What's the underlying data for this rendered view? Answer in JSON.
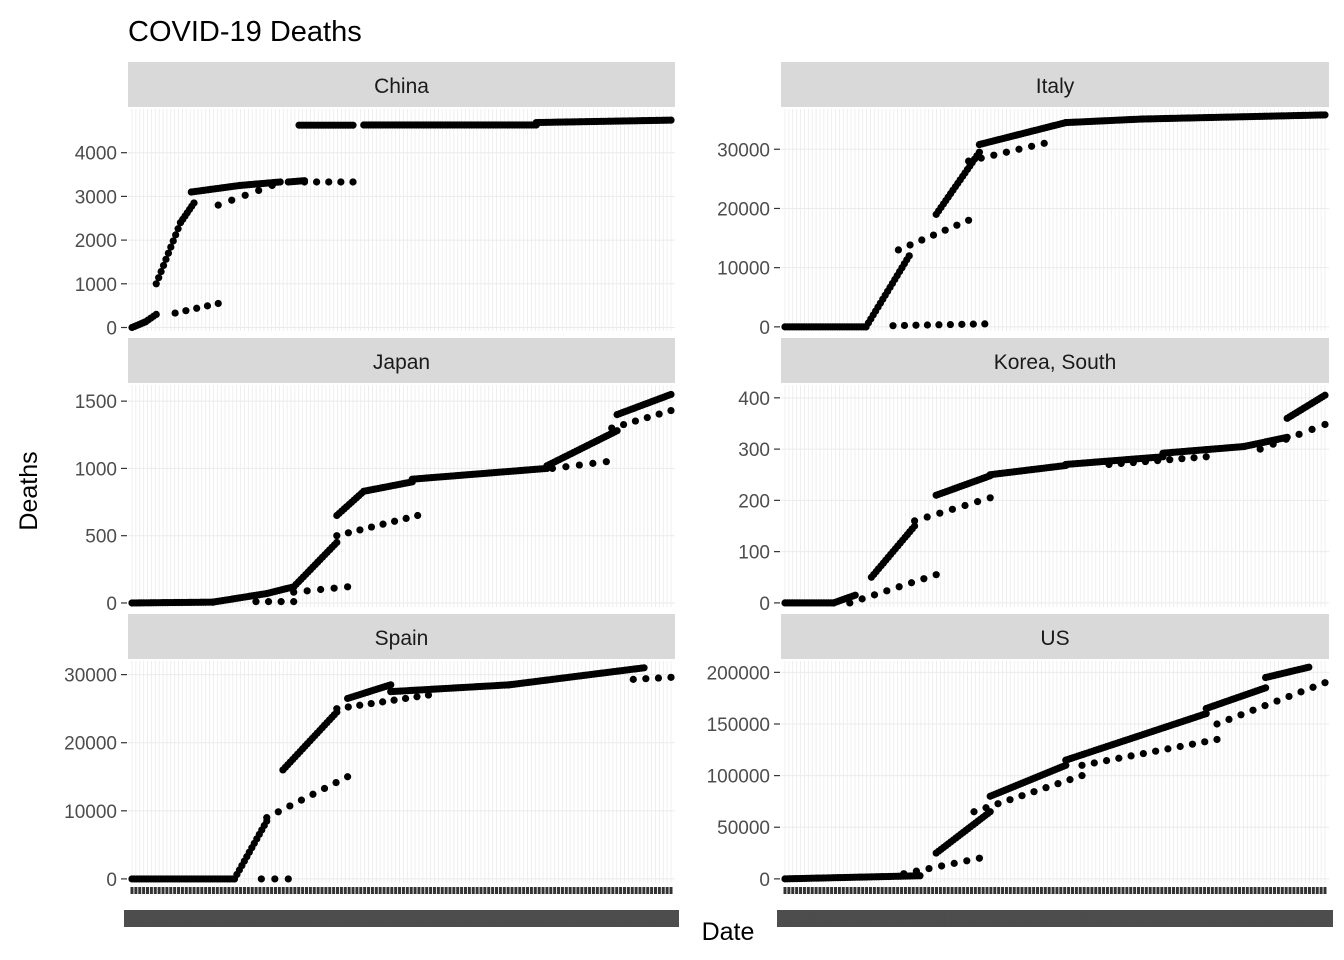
{
  "chart_data": {
    "type": "scatter",
    "title": "COVID-19 Deaths",
    "xlabel": "Date",
    "ylabel": "Deaths",
    "facet_layout": "3 rows x 2 columns, free y scales",
    "x_axis": "categorical dates (tick labels overplotted and illegible)",
    "grid": true,
    "point_color": "#000000",
    "strip_color": "#d9d9d9",
    "panels": [
      {
        "name": "China",
        "yticks": [
          0,
          1000,
          2000,
          3000,
          4000
        ],
        "ylim": [
          -80,
          5000
        ],
        "segments": [
          {
            "from": 0,
            "to": 0.025,
            "y0": 0,
            "y1": 130
          },
          {
            "from": 0.025,
            "to": 0.045,
            "y0": 130,
            "y1": 300
          },
          {
            "from": 0.045,
            "to": 0.09,
            "y0": 1000,
            "y1": 2400
          },
          {
            "from": 0.09,
            "to": 0.115,
            "y0": 2400,
            "y1": 2850
          },
          {
            "from": 0.11,
            "to": 0.2,
            "y0": 3100,
            "y1": 3250
          },
          {
            "from": 0.2,
            "to": 0.275,
            "y0": 3250,
            "y1": 3330
          },
          {
            "from": 0.29,
            "to": 0.32,
            "y0": 3330,
            "y1": 3360
          },
          {
            "from": 0.31,
            "to": 0.41,
            "y0": 4630,
            "y1": 4630
          },
          {
            "from": 0.43,
            "to": 0.75,
            "y0": 4634,
            "y1": 4634
          },
          {
            "from": 0.75,
            "to": 1.0,
            "y0": 4690,
            "y1": 4745
          }
        ],
        "sparse": [
          {
            "from": 0.08,
            "to": 0.16,
            "y0": 330,
            "y1": 550
          },
          {
            "from": 0.16,
            "to": 0.26,
            "y0": 2800,
            "y1": 3250
          },
          {
            "from": 0.32,
            "to": 0.41,
            "y0": 3330,
            "y1": 3330
          }
        ]
      },
      {
        "name": "Italy",
        "yticks": [
          0,
          10000,
          20000,
          30000
        ],
        "ylim": [
          -700,
          36800
        ],
        "segments": [
          {
            "from": 0,
            "to": 0.15,
            "y0": 0,
            "y1": 0
          },
          {
            "from": 0.15,
            "to": 0.23,
            "y0": 0,
            "y1": 12000
          },
          {
            "from": 0.28,
            "to": 0.36,
            "y0": 19000,
            "y1": 29500
          },
          {
            "from": 0.36,
            "to": 0.52,
            "y0": 30800,
            "y1": 34500
          },
          {
            "from": 0.52,
            "to": 0.66,
            "y0": 34500,
            "y1": 35100
          },
          {
            "from": 0.66,
            "to": 1.0,
            "y0": 35100,
            "y1": 35800
          }
        ],
        "sparse": [
          {
            "from": 0.2,
            "to": 0.37,
            "y0": 200,
            "y1": 500
          },
          {
            "from": 0.21,
            "to": 0.34,
            "y0": 13000,
            "y1": 18000
          },
          {
            "from": 0.34,
            "to": 0.48,
            "y0": 28000,
            "y1": 31000
          }
        ]
      },
      {
        "name": "Japan",
        "yticks": [
          0,
          500,
          1000,
          1500
        ],
        "ylim": [
          -30,
          1620
        ],
        "segments": [
          {
            "from": 0,
            "to": 0.15,
            "y0": 0,
            "y1": 6
          },
          {
            "from": 0.15,
            "to": 0.25,
            "y0": 6,
            "y1": 70
          },
          {
            "from": 0.25,
            "to": 0.3,
            "y0": 70,
            "y1": 120
          },
          {
            "from": 0.3,
            "to": 0.38,
            "y0": 120,
            "y1": 450
          },
          {
            "from": 0.38,
            "to": 0.43,
            "y0": 650,
            "y1": 830
          },
          {
            "from": 0.43,
            "to": 0.52,
            "y0": 830,
            "y1": 900
          },
          {
            "from": 0.52,
            "to": 0.77,
            "y0": 920,
            "y1": 1000
          },
          {
            "from": 0.77,
            "to": 0.9,
            "y0": 1020,
            "y1": 1280
          },
          {
            "from": 0.9,
            "to": 1.0,
            "y0": 1400,
            "y1": 1550
          }
        ],
        "sparse": [
          {
            "from": 0.23,
            "to": 0.3,
            "y0": 10,
            "y1": 10
          },
          {
            "from": 0.3,
            "to": 0.4,
            "y0": 80,
            "y1": 120
          },
          {
            "from": 0.38,
            "to": 0.53,
            "y0": 500,
            "y1": 650
          },
          {
            "from": 0.78,
            "to": 0.88,
            "y0": 1000,
            "y1": 1050
          },
          {
            "from": 0.89,
            "to": 1.0,
            "y0": 1300,
            "y1": 1430
          }
        ]
      },
      {
        "name": "Korea, South",
        "yticks": [
          0,
          100,
          200,
          300,
          400
        ],
        "ylim": [
          -8,
          425
        ],
        "segments": [
          {
            "from": 0,
            "to": 0.09,
            "y0": 0,
            "y1": 0
          },
          {
            "from": 0.09,
            "to": 0.13,
            "y0": 0,
            "y1": 15
          },
          {
            "from": 0.16,
            "to": 0.24,
            "y0": 50,
            "y1": 150
          },
          {
            "from": 0.28,
            "to": 0.38,
            "y0": 210,
            "y1": 248
          },
          {
            "from": 0.38,
            "to": 0.52,
            "y0": 250,
            "y1": 268
          },
          {
            "from": 0.52,
            "to": 0.7,
            "y0": 270,
            "y1": 285
          },
          {
            "from": 0.7,
            "to": 0.85,
            "y0": 292,
            "y1": 305
          },
          {
            "from": 0.85,
            "to": 0.93,
            "y0": 305,
            "y1": 323
          },
          {
            "from": 0.93,
            "to": 1.0,
            "y0": 360,
            "y1": 405
          }
        ],
        "sparse": [
          {
            "from": 0.12,
            "to": 0.28,
            "y0": 0,
            "y1": 55
          },
          {
            "from": 0.24,
            "to": 0.38,
            "y0": 160,
            "y1": 205
          },
          {
            "from": 0.6,
            "to": 0.78,
            "y0": 270,
            "y1": 285
          },
          {
            "from": 0.88,
            "to": 1.0,
            "y0": 300,
            "y1": 348
          }
        ]
      },
      {
        "name": "Spain",
        "yticks": [
          0,
          10000,
          20000,
          30000
        ],
        "ylim": [
          -600,
          32000
        ],
        "segments": [
          {
            "from": 0,
            "to": 0.19,
            "y0": 0,
            "y1": 0
          },
          {
            "from": 0.19,
            "to": 0.25,
            "y0": 0,
            "y1": 8500
          },
          {
            "from": 0.28,
            "to": 0.38,
            "y0": 16000,
            "y1": 24500
          },
          {
            "from": 0.4,
            "to": 0.48,
            "y0": 26500,
            "y1": 28500
          },
          {
            "from": 0.48,
            "to": 0.7,
            "y0": 27500,
            "y1": 28500
          },
          {
            "from": 0.7,
            "to": 0.95,
            "y0": 28500,
            "y1": 31000
          }
        ],
        "sparse": [
          {
            "from": 0.24,
            "to": 0.29,
            "y0": 0,
            "y1": 0
          },
          {
            "from": 0.25,
            "to": 0.4,
            "y0": 9000,
            "y1": 15000
          },
          {
            "from": 0.38,
            "to": 0.55,
            "y0": 25000,
            "y1": 27000
          },
          {
            "from": 0.93,
            "to": 1.0,
            "y0": 29300,
            "y1": 29600
          }
        ]
      },
      {
        "name": "US",
        "yticks": [
          0,
          50000,
          100000,
          150000,
          200000
        ],
        "ylim": [
          -4000,
          211000
        ],
        "segments": [
          {
            "from": 0,
            "to": 0.25,
            "y0": 0,
            "y1": 3000
          },
          {
            "from": 0.28,
            "to": 0.38,
            "y0": 25000,
            "y1": 65000
          },
          {
            "from": 0.38,
            "to": 0.52,
            "y0": 80000,
            "y1": 110000
          },
          {
            "from": 0.52,
            "to": 0.78,
            "y0": 115000,
            "y1": 160000
          },
          {
            "from": 0.78,
            "to": 0.89,
            "y0": 165000,
            "y1": 185000
          },
          {
            "from": 0.89,
            "to": 0.97,
            "y0": 195000,
            "y1": 205000
          }
        ],
        "sparse": [
          {
            "from": 0.22,
            "to": 0.36,
            "y0": 5000,
            "y1": 20000
          },
          {
            "from": 0.35,
            "to": 0.55,
            "y0": 65000,
            "y1": 100000
          },
          {
            "from": 0.55,
            "to": 0.8,
            "y0": 110000,
            "y1": 135000
          },
          {
            "from": 0.8,
            "to": 1.0,
            "y0": 150000,
            "y1": 190000
          }
        ]
      }
    ]
  }
}
